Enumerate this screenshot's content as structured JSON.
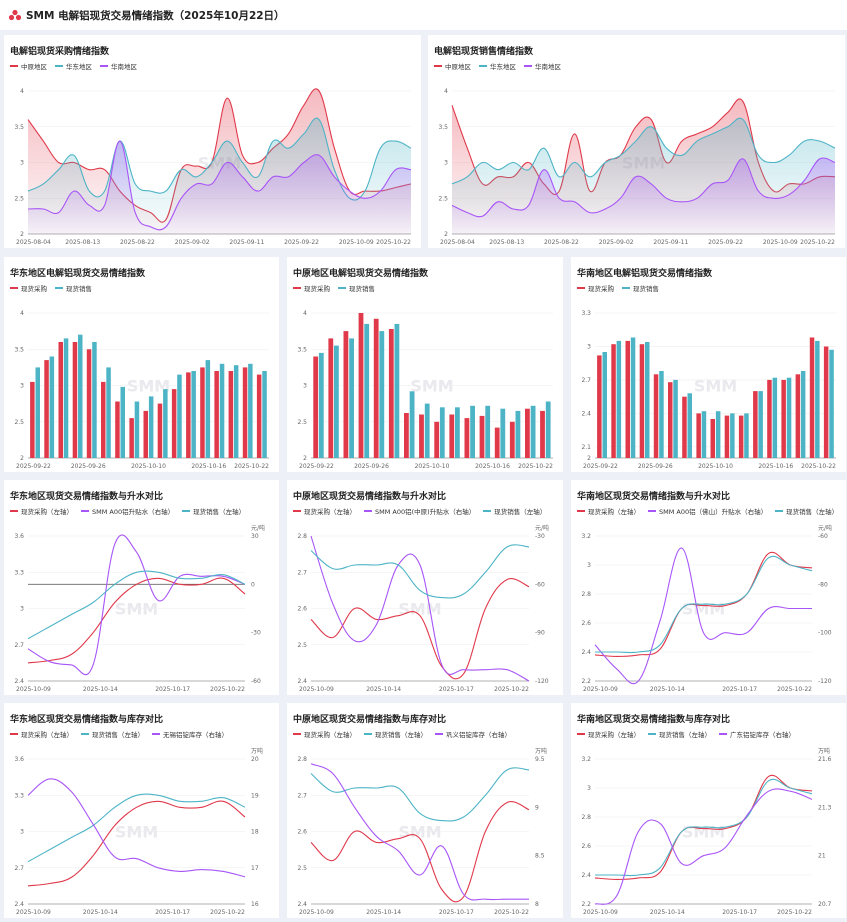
{
  "page": {
    "title": "SMM 电解铝现货交易情绪指数（2025年10月22日）"
  },
  "colors": {
    "red": "#e0394a",
    "teal": "#4db4c6",
    "purple": "#a855f7",
    "axis": "#999999",
    "grid": "#eeeeee"
  },
  "watermark": "SMM",
  "panels": [
    {
      "id": "p1",
      "title": "电解铝现货采购情绪指数",
      "legend": [
        "中原地区",
        "华东地区",
        "华南地区"
      ],
      "chart_data": {
        "type": "area",
        "x_ticks": [
          "2025-08-04",
          "2025-08-13",
          "2025-08-22",
          "2025-09-02",
          "2025-09-11",
          "2025-09-22",
          "2025-10-09",
          "2025-10-22"
        ],
        "y_ticks": [
          2,
          2.5,
          3,
          3.5,
          4
        ],
        "ylim": [
          2,
          4
        ],
        "series": [
          {
            "name": "中原地区",
            "values": [
              3.6,
              3.3,
              3.0,
              3.0,
              2.9,
              2.9,
              2.6,
              2.4,
              2.3,
              2.2,
              2.9,
              2.95,
              3.0,
              3.9,
              3.1,
              3.0,
              3.2,
              3.4,
              3.8,
              4.0,
              3.2,
              2.6,
              2.6,
              2.6,
              2.65,
              2.7
            ]
          },
          {
            "name": "华东地区",
            "values": [
              2.6,
              2.7,
              2.9,
              3.1,
              2.6,
              2.6,
              3.3,
              2.7,
              2.6,
              2.6,
              2.9,
              2.8,
              3.0,
              3.3,
              3.0,
              2.8,
              3.3,
              3.2,
              3.4,
              3.6,
              2.9,
              2.5,
              2.6,
              3.2,
              3.3,
              3.2
            ]
          },
          {
            "name": "华南地区",
            "values": [
              2.35,
              2.35,
              2.3,
              2.6,
              2.4,
              2.4,
              3.3,
              2.3,
              2.1,
              2.1,
              2.5,
              2.7,
              2.7,
              3.0,
              2.8,
              2.6,
              2.8,
              2.8,
              3.0,
              3.1,
              2.8,
              2.6,
              2.5,
              2.6,
              2.9,
              2.9
            ]
          }
        ]
      }
    },
    {
      "id": "p2",
      "title": "电解铝现货销售情绪指数",
      "legend": [
        "中原地区",
        "华东地区",
        "华南地区"
      ],
      "chart_data": {
        "type": "area",
        "x_ticks": [
          "2025-08-04",
          "2025-08-13",
          "2025-08-22",
          "2025-09-02",
          "2025-09-11",
          "2025-09-22",
          "2025-10-09",
          "2025-10-22"
        ],
        "y_ticks": [
          2,
          2.5,
          3,
          3.5,
          4
        ],
        "ylim": [
          2,
          4
        ],
        "series": [
          {
            "name": "中原地区",
            "values": [
              3.8,
              3.2,
              2.7,
              2.8,
              2.8,
              3.0,
              2.7,
              2.6,
              3.4,
              2.6,
              3.0,
              3.1,
              3.5,
              3.6,
              3.0,
              3.3,
              3.4,
              3.5,
              3.7,
              3.85,
              3.0,
              2.6,
              2.7,
              2.7,
              2.8,
              2.8
            ]
          },
          {
            "name": "华东地区",
            "values": [
              2.7,
              2.8,
              3.0,
              2.9,
              3.0,
              2.9,
              3.2,
              2.8,
              3.0,
              2.8,
              3.0,
              3.1,
              3.3,
              3.5,
              3.2,
              3.1,
              3.3,
              3.4,
              3.5,
              3.6,
              3.1,
              3.0,
              3.1,
              3.3,
              3.3,
              3.2
            ]
          },
          {
            "name": "华南地区",
            "values": [
              2.4,
              2.3,
              2.25,
              2.45,
              2.35,
              2.4,
              2.9,
              2.5,
              2.45,
              2.3,
              2.35,
              2.5,
              2.8,
              2.7,
              2.5,
              2.45,
              2.5,
              2.7,
              2.75,
              3.05,
              2.6,
              2.5,
              2.55,
              2.75,
              3.05,
              3.0
            ]
          }
        ]
      }
    },
    {
      "id": "p3",
      "title": "华东地区电解铝现货交易情绪指数",
      "legend": [
        "现货采购",
        "现货销售"
      ],
      "chart_data": {
        "type": "bar",
        "x_ticks": [
          "2025-09-22",
          "2025-09-26",
          "2025-10-10",
          "2025-10-16",
          "2025-10-22"
        ],
        "y_ticks": [
          2,
          2.5,
          3,
          3.5,
          4
        ],
        "ylim": [
          2,
          4
        ],
        "series": [
          {
            "name": "现货采购",
            "values": [
              3.05,
              3.35,
              3.6,
              3.6,
              3.5,
              3.05,
              2.78,
              2.55,
              2.65,
              2.75,
              2.95,
              3.18,
              3.25,
              3.2,
              3.2,
              3.25,
              3.15
            ]
          },
          {
            "name": "现货销售",
            "values": [
              3.25,
              3.4,
              3.65,
              3.7,
              3.6,
              3.25,
              2.98,
              2.78,
              2.85,
              2.95,
              3.15,
              3.2,
              3.35,
              3.3,
              3.28,
              3.3,
              3.2
            ]
          }
        ]
      }
    },
    {
      "id": "p4",
      "title": "中原地区电解铝现货交易情绪指数",
      "legend": [
        "现货采购",
        "现货销售"
      ],
      "chart_data": {
        "type": "bar",
        "x_ticks": [
          "2025-09-22",
          "2025-09-26",
          "2025-10-10",
          "2025-10-16",
          "2025-10-22"
        ],
        "y_ticks": [
          2,
          2.5,
          3,
          3.5,
          4
        ],
        "ylim": [
          2,
          4
        ],
        "series": [
          {
            "name": "现货采购",
            "values": [
              3.4,
              3.65,
              3.75,
              4.0,
              3.92,
              3.78,
              2.62,
              2.6,
              2.5,
              2.6,
              2.55,
              2.58,
              2.42,
              2.5,
              2.68,
              2.65
            ]
          },
          {
            "name": "现货销售",
            "values": [
              3.45,
              3.55,
              3.65,
              3.85,
              3.75,
              3.85,
              2.92,
              2.75,
              2.7,
              2.7,
              2.72,
              2.72,
              2.68,
              2.65,
              2.72,
              2.78
            ]
          }
        ]
      }
    },
    {
      "id": "p5",
      "title": "华南地区电解铝现货交易情绪指数",
      "legend": [
        "现货采购",
        "现货销售"
      ],
      "chart_data": {
        "type": "bar",
        "x_ticks": [
          "2025-09-22",
          "2025-09-26",
          "2025-10-10",
          "2025-10-16",
          "2025-10-22"
        ],
        "y_ticks": [
          2,
          2.1,
          2.4,
          2.7,
          3,
          3.3
        ],
        "ylim": [
          2,
          3.3
        ],
        "series": [
          {
            "name": "现货采购",
            "values": [
              2.92,
              3.02,
              3.05,
              3.02,
              2.75,
              2.68,
              2.55,
              2.4,
              2.35,
              2.38,
              2.38,
              2.6,
              2.7,
              2.7,
              2.75,
              3.08,
              3.0
            ]
          },
          {
            "name": "现货销售",
            "values": [
              2.95,
              3.05,
              3.08,
              3.04,
              2.78,
              2.7,
              2.58,
              2.42,
              2.42,
              2.4,
              2.4,
              2.6,
              2.72,
              2.72,
              2.78,
              3.05,
              2.97
            ]
          }
        ]
      }
    },
    {
      "id": "p6",
      "title": "华东地区现货交易情绪指数与升水对比",
      "legend": [
        "现货采购（左轴）",
        "SMM A00铝升贴水（右轴）",
        "现货销售（左轴）"
      ],
      "chart_data": {
        "type": "line",
        "x_ticks": [
          "2025-10-09",
          "2025-10-14",
          "2025-10-17",
          "2025-10-22"
        ],
        "y_ticks": [
          2.4,
          2.7,
          3,
          3.3,
          3.6
        ],
        "ylim": [
          2.4,
          3.6
        ],
        "y2_ticks": [
          -60,
          -30,
          0,
          30
        ],
        "y2lim": [
          -60,
          30
        ],
        "y2_unit": "元/吨",
        "series": [
          {
            "name": "现货采购",
            "axis": "left",
            "values": [
              2.55,
              2.57,
              2.62,
              2.8,
              3.05,
              3.2,
              3.25,
              3.2,
              3.2,
              3.25,
              3.12
            ]
          },
          {
            "name": "SMM A00铝升贴水",
            "axis": "right",
            "values": [
              -40,
              -48,
              -50,
              -50,
              25,
              20,
              -10,
              5,
              5,
              5,
              0
            ]
          },
          {
            "name": "现货销售",
            "axis": "right_dummy",
            "values": [
              2.75,
              2.85,
              2.95,
              3.05,
              3.2,
              3.3,
              3.3,
              3.25,
              3.25,
              3.28,
              3.2
            ]
          }
        ]
      }
    },
    {
      "id": "p7",
      "title": "中原地区现货交易情绪指数与升水对比",
      "legend": [
        "现货采购（左轴）",
        "SMM A00铝(中原)升贴水（右轴）",
        "现货销售（左轴）"
      ],
      "chart_data": {
        "type": "line",
        "x_ticks": [
          "2025-10-09",
          "2025-10-14",
          "2025-10-17",
          "2025-10-22"
        ],
        "y_ticks": [
          2.4,
          2.5,
          2.6,
          2.7,
          2.8
        ],
        "ylim": [
          2.4,
          2.8
        ],
        "y2_ticks": [
          -120,
          -90,
          -60,
          -30
        ],
        "y2lim": [
          -120,
          -30
        ],
        "y2_unit": "元/吨",
        "series": [
          {
            "name": "现货采购",
            "axis": "left",
            "values": [
              2.57,
              2.52,
              2.6,
              2.57,
              2.58,
              2.58,
              2.44,
              2.42,
              2.6,
              2.68,
              2.66
            ]
          },
          {
            "name": "SMM A00铝(中原)升贴水",
            "axis": "right",
            "values": [
              -30,
              -72,
              -95,
              -85,
              -48,
              -48,
              -110,
              -113,
              -113,
              -113,
              -120
            ]
          },
          {
            "name": "现货销售",
            "axis": "left",
            "values": [
              2.76,
              2.71,
              2.72,
              2.72,
              2.72,
              2.65,
              2.63,
              2.64,
              2.7,
              2.77,
              2.77
            ]
          }
        ]
      }
    },
    {
      "id": "p8",
      "title": "华南地区现货交易情绪指数与升水对比",
      "legend": [
        "现货采购（左轴）",
        "SMM A00铝（佛山）升贴水（右轴）",
        "现货销售（左轴）"
      ],
      "chart_data": {
        "type": "line",
        "x_ticks": [
          "2025-10-09",
          "2025-10-14",
          "2025-10-17",
          "2025-10-22"
        ],
        "y_ticks": [
          2.2,
          2.4,
          2.6,
          2.8,
          3,
          3.2
        ],
        "ylim": [
          2.2,
          3.2
        ],
        "y2_ticks": [
          -120,
          -100,
          -80,
          -60
        ],
        "y2lim": [
          -120,
          -60
        ],
        "y2_unit": "元/吨",
        "series": [
          {
            "name": "现货采购",
            "axis": "left",
            "values": [
              2.38,
              2.37,
              2.38,
              2.42,
              2.7,
              2.72,
              2.72,
              2.8,
              3.08,
              3.0,
              2.98
            ]
          },
          {
            "name": "SMM A00铝（佛山）升贴水",
            "axis": "right",
            "values": [
              -105,
              -115,
              -120,
              -95,
              -65,
              -100,
              -100,
              -100,
              -90,
              -90,
              -90
            ]
          },
          {
            "name": "现货销售",
            "axis": "left",
            "values": [
              2.4,
              2.4,
              2.4,
              2.45,
              2.7,
              2.73,
              2.73,
              2.8,
              3.05,
              3.0,
              2.96
            ]
          }
        ]
      }
    },
    {
      "id": "p9",
      "title": "华东地区现货交易情绪指数与库存对比",
      "legend": [
        "现货采购（左轴）",
        "现货销售（左轴）",
        "无锡铝锭库存（右轴）"
      ],
      "chart_data": {
        "type": "line",
        "x_ticks": [
          "2025-10-09",
          "2025-10-14",
          "2025-10-17",
          "2025-10-22"
        ],
        "y_ticks": [
          2.4,
          2.7,
          3,
          3.3,
          3.6
        ],
        "ylim": [
          2.4,
          3.6
        ],
        "y2_ticks": [
          16,
          17,
          18,
          19,
          20
        ],
        "y2lim": [
          16,
          20
        ],
        "y2_unit": "万吨",
        "series": [
          {
            "name": "现货采购",
            "axis": "left",
            "values": [
              2.55,
              2.57,
              2.62,
              2.8,
              3.05,
              3.2,
              3.25,
              3.2,
              3.2,
              3.25,
              3.12
            ]
          },
          {
            "name": "现货销售",
            "axis": "left",
            "values": [
              2.75,
              2.85,
              2.95,
              3.05,
              3.2,
              3.3,
              3.3,
              3.25,
              3.25,
              3.28,
              3.2
            ]
          },
          {
            "name": "无锡铝锭库存",
            "axis": "right",
            "values": [
              19.0,
              19.45,
              19.1,
              18.2,
              17.3,
              17.25,
              17.0,
              16.9,
              16.95,
              16.9,
              16.75
            ]
          }
        ]
      }
    },
    {
      "id": "p10",
      "title": "中原地区现货交易情绪指数与库存对比",
      "legend": [
        "现货采购（左轴）",
        "现货销售（左轴）",
        "巩义铝锭库存（右轴）"
      ],
      "chart_data": {
        "type": "line",
        "x_ticks": [
          "2025-10-09",
          "2025-10-14",
          "2025-10-17",
          "2025-10-22"
        ],
        "y_ticks": [
          2.4,
          2.5,
          2.6,
          2.7,
          2.8
        ],
        "ylim": [
          2.4,
          2.8
        ],
        "y2_ticks": [
          8,
          8.5,
          9,
          9.5
        ],
        "y2lim": [
          8,
          9.5
        ],
        "y2_unit": "万吨",
        "series": [
          {
            "name": "现货采购",
            "axis": "left",
            "values": [
              2.57,
              2.52,
              2.6,
              2.57,
              2.58,
              2.58,
              2.44,
              2.42,
              2.6,
              2.68,
              2.66
            ]
          },
          {
            "name": "现货销售",
            "axis": "left",
            "values": [
              2.76,
              2.71,
              2.72,
              2.72,
              2.72,
              2.65,
              2.63,
              2.64,
              2.7,
              2.77,
              2.77
            ]
          },
          {
            "name": "巩义铝锭库存",
            "axis": "right",
            "values": [
              9.45,
              9.35,
              9.0,
              8.7,
              8.55,
              8.3,
              8.6,
              8.1,
              8.05,
              8.05,
              8.05
            ]
          }
        ]
      }
    },
    {
      "id": "p11",
      "title": "华南地区现货交易情绪指数与库存对比",
      "legend": [
        "现货采购（左轴）",
        "现货销售（左轴）",
        "广东铝锭库存（右轴）"
      ],
      "chart_data": {
        "type": "line",
        "x_ticks": [
          "2025-10-09",
          "2025-10-14",
          "2025-10-17",
          "2025-10-22"
        ],
        "y_ticks": [
          2.2,
          2.4,
          2.6,
          2.8,
          3,
          3.2
        ],
        "ylim": [
          2.2,
          3.2
        ],
        "y2_ticks": [
          20.7,
          21,
          21.3,
          21.6
        ],
        "y2lim": [
          20.7,
          21.6
        ],
        "y2_unit": "万吨",
        "series": [
          {
            "name": "现货采购",
            "axis": "left",
            "values": [
              2.38,
              2.37,
              2.38,
              2.42,
              2.7,
              2.72,
              2.72,
              2.8,
              3.08,
              3.0,
              2.98
            ]
          },
          {
            "name": "现货销售",
            "axis": "left",
            "values": [
              2.4,
              2.4,
              2.4,
              2.45,
              2.7,
              2.73,
              2.73,
              2.8,
              3.05,
              3.0,
              2.96
            ]
          },
          {
            "name": "广东铝锭库存",
            "axis": "right",
            "values": [
              20.7,
              20.75,
              21.15,
              21.2,
              20.95,
              21.0,
              21.05,
              21.25,
              21.4,
              21.4,
              21.35
            ]
          }
        ]
      }
    }
  ]
}
